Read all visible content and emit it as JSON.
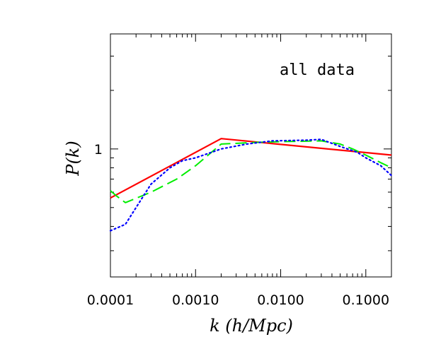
{
  "chart_data": {
    "type": "line",
    "title": "",
    "annotation": "all data",
    "xlabel": "k (h/Mpc)",
    "ylabel": "P(k)",
    "xscale": "log",
    "yscale": "log",
    "xlim": [
      0.0001,
      0.2
    ],
    "ylim": [
      0.22,
      3.9
    ],
    "xticks": [
      {
        "value": 0.0001,
        "label": "0.0001"
      },
      {
        "value": 0.001,
        "label": "0.0010"
      },
      {
        "value": 0.01,
        "label": "0.0100"
      },
      {
        "value": 0.1,
        "label": "0.1000"
      }
    ],
    "yticks": [
      {
        "value": 1,
        "label": "1"
      }
    ],
    "grid": false,
    "legend": "none",
    "series": [
      {
        "style": "solid",
        "color": "#ff0000",
        "x": [
          0.0001,
          0.002,
          0.2
        ],
        "y": [
          0.56,
          1.13,
          0.93
        ]
      },
      {
        "style": "dashed",
        "color": "#00ee00",
        "x": [
          0.0001,
          0.00012,
          0.00015,
          0.0003,
          0.0006,
          0.001,
          0.002,
          0.005,
          0.01,
          0.03,
          0.05,
          0.07,
          0.1,
          0.15,
          0.2
        ],
        "y": [
          0.61,
          0.57,
          0.53,
          0.6,
          0.7,
          0.82,
          1.06,
          1.08,
          1.09,
          1.1,
          1.06,
          1.0,
          0.93,
          0.85,
          0.8
        ]
      },
      {
        "style": "dotted",
        "color": "#0000ff",
        "x": [
          0.0001,
          0.00015,
          0.0002,
          0.0003,
          0.0005,
          0.0007,
          0.001,
          0.002,
          0.004,
          0.008,
          0.02,
          0.03,
          0.05,
          0.08,
          0.1,
          0.15,
          0.2
        ],
        "y": [
          0.38,
          0.41,
          0.5,
          0.66,
          0.8,
          0.87,
          0.9,
          1.0,
          1.06,
          1.1,
          1.11,
          1.12,
          1.03,
          0.96,
          0.9,
          0.82,
          0.73
        ]
      }
    ]
  }
}
